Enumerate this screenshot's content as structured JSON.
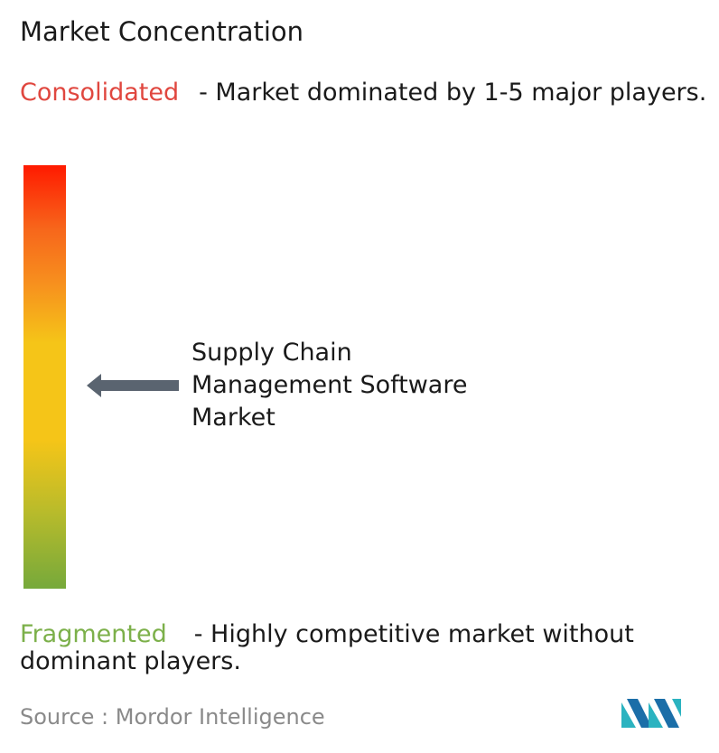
{
  "title": "Market Concentration",
  "consolidated": {
    "label": "Consolidated",
    "description": "- Market dominated by 1-5 major players."
  },
  "market": {
    "label": "Supply Chain Management Software Market"
  },
  "fragmented": {
    "label": "Fragmented",
    "description": "- Highly competitive market without dominant players."
  },
  "source": "Source :  Mordor Intelligence"
}
